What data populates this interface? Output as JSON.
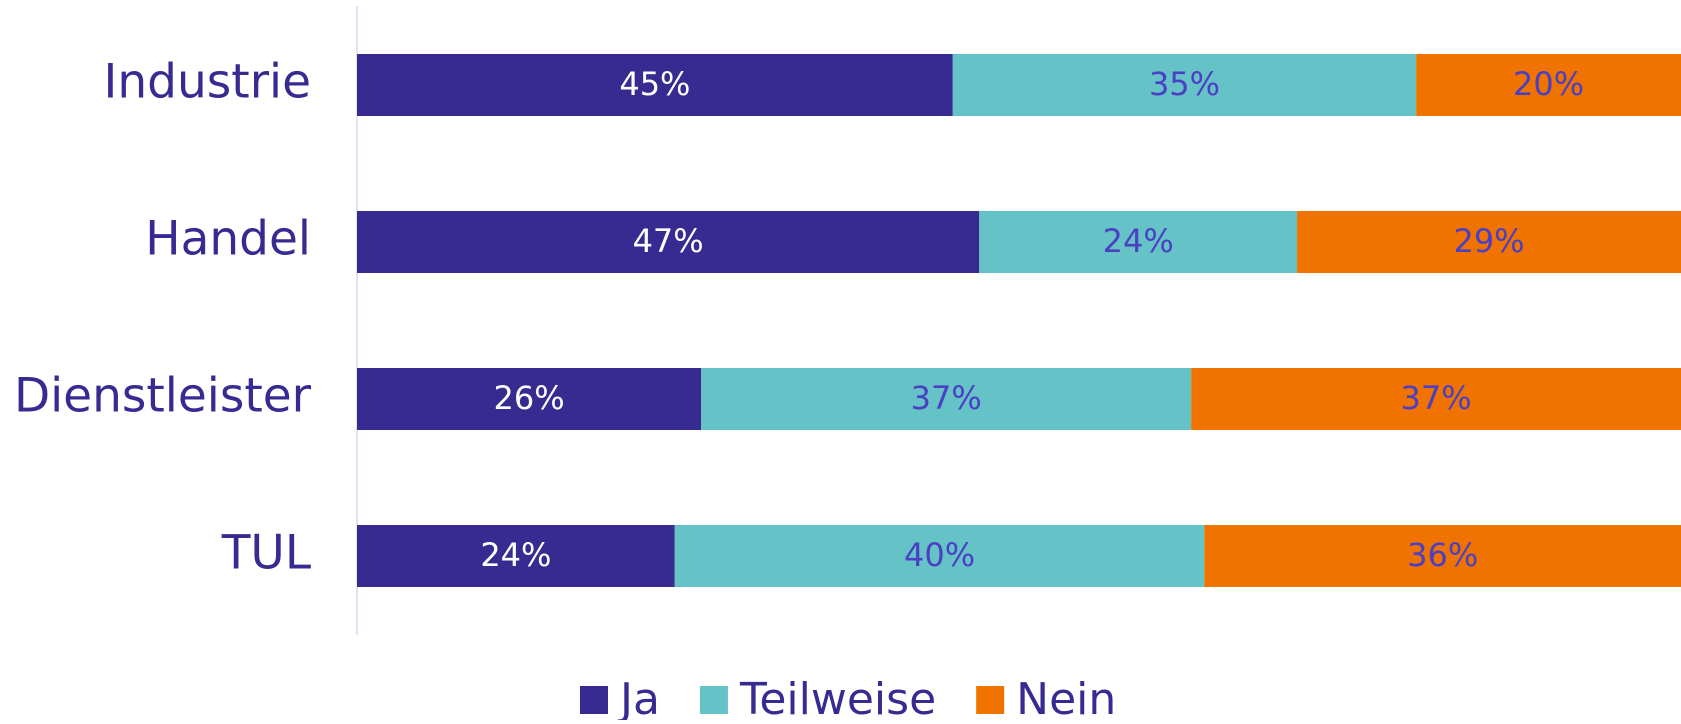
{
  "chart_data": {
    "type": "stacked_bar_horizontal",
    "categories": [
      "Industrie",
      "Handel",
      "Dienstleister",
      "TUL"
    ],
    "xlim": [
      0,
      100
    ],
    "legend": "bottom",
    "series": [
      {
        "name": "Ja",
        "color": "#372b92",
        "label_color": "#ffffff",
        "values": [
          45,
          47,
          26,
          24
        ],
        "value_labels": [
          "45%",
          "47%",
          "26%",
          "24%"
        ]
      },
      {
        "name": "Teilweise",
        "color": "#65c3c8",
        "label_color": "#4b3fc4",
        "values": [
          35,
          24,
          37,
          40
        ],
        "value_labels": [
          "35%",
          "24%",
          "37%",
          "40%"
        ]
      },
      {
        "name": "Nein",
        "color": "#f07300",
        "label_color": "#4b3fc4",
        "values": [
          20,
          29,
          37,
          36
        ],
        "value_labels": [
          "20%",
          "29%",
          "37%",
          "36%"
        ]
      }
    ]
  }
}
